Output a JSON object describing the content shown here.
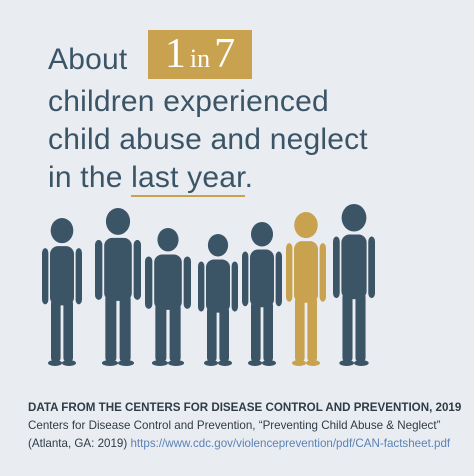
{
  "headline": {
    "prefix": "About",
    "highlight": {
      "count": "1",
      "word": "in",
      "total": "7"
    },
    "lines": [
      "children experienced",
      "child abuse and neglect"
    ],
    "last_line": {
      "before": "in the",
      "underlined": "last year",
      "after": "."
    }
  },
  "source": {
    "heading": "DATA FROM THE CENTERS FOR DISEASE  CONTROL AND PREVENTION, 2019",
    "citation": "Centers for Disease Control and Prevention, “Preventing Child Abuse & Neglect”",
    "publisher": "(Atlanta, GA: 2019)",
    "url": "https://www.cdc.gov/violenceprevention/pdf/CAN-factsheet.pdf"
  }
}
